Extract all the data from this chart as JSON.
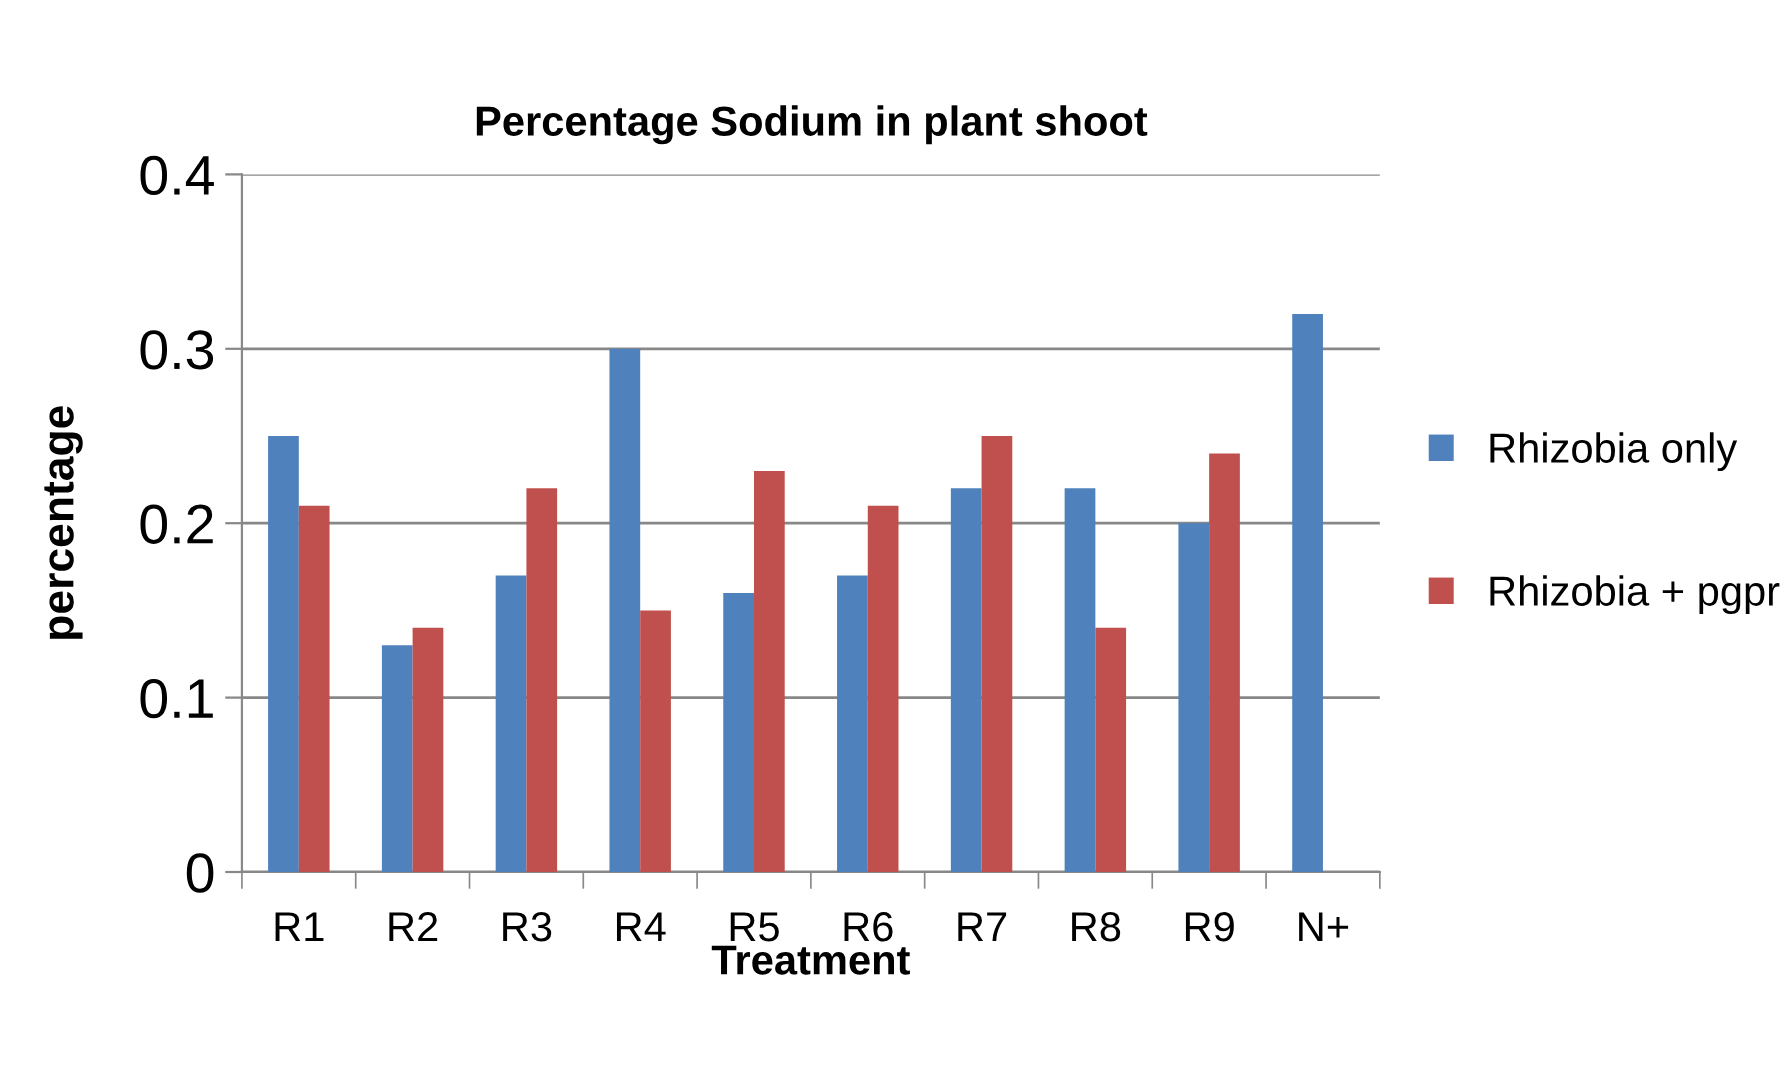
{
  "chart_data": {
    "type": "bar",
    "title": "Percentage Sodium in plant shoot",
    "xlabel": "Treatment",
    "ylabel": "percentage",
    "categories": [
      "R1",
      "R2",
      "R3",
      "R4",
      "R5",
      "R6",
      "R7",
      "R8",
      "R9",
      "N+"
    ],
    "series": [
      {
        "name": "Rhizobia only",
        "color": "#4f81bd",
        "values": [
          0.25,
          0.13,
          0.17,
          0.3,
          0.16,
          0.17,
          0.22,
          0.22,
          0.2,
          0.32
        ]
      },
      {
        "name": "Rhizobia + pgpr",
        "color": "#c0504d",
        "values": [
          0.21,
          0.14,
          0.22,
          0.15,
          0.23,
          0.21,
          0.25,
          0.14,
          0.24,
          null
        ]
      }
    ],
    "ylim": [
      0,
      0.4
    ],
    "yticks": [
      {
        "value": 0,
        "label": "0"
      },
      0.1,
      0.2,
      0.3,
      0.4
    ],
    "grid": "y",
    "legend": "right"
  }
}
